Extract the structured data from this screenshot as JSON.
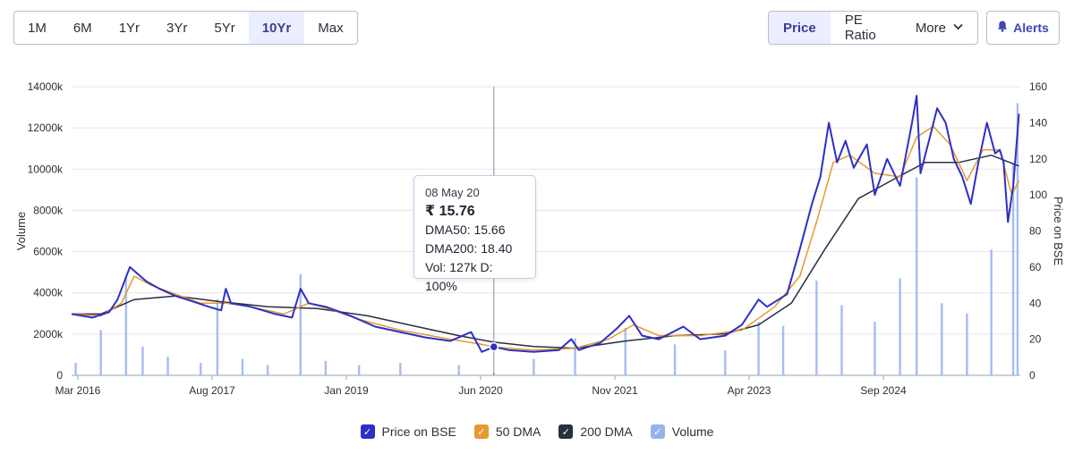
{
  "toolbar": {
    "ranges": [
      {
        "label": "1M",
        "active": false
      },
      {
        "label": "6M",
        "active": false
      },
      {
        "label": "1Yr",
        "active": false
      },
      {
        "label": "3Yr",
        "active": false
      },
      {
        "label": "5Yr",
        "active": false
      },
      {
        "label": "10Yr",
        "active": true
      },
      {
        "label": "Max",
        "active": false
      }
    ],
    "metrics": {
      "price": "Price",
      "pe_ratio": "PE Ratio",
      "more": "More"
    },
    "alerts": "Alerts"
  },
  "tooltip": {
    "date": "08 May 20",
    "price": "₹ 15.76",
    "dma50": "DMA50: 15.66",
    "dma200": "DMA200: 18.40",
    "vol": "Vol: 127k",
    "delivery": "D: 100%"
  },
  "legend": [
    {
      "label": "Price on BSE",
      "color": "#2e2fc4"
    },
    {
      "label": "50 DMA",
      "color": "#e69a2e"
    },
    {
      "label": "200 DMA",
      "color": "#253041"
    },
    {
      "label": "Volume",
      "color": "#93b3ee"
    }
  ],
  "chart_data": {
    "type": "line",
    "x_ticks": [
      "Mar 2016",
      "Aug 2017",
      "Jan 2019",
      "Jun 2020",
      "Nov 2021",
      "Apr 2023",
      "Sep 2024"
    ],
    "y_left": {
      "label": "Volume",
      "range": [
        0,
        14000000
      ],
      "ticks": [
        "0",
        "2000k",
        "4000k",
        "6000k",
        "8000k",
        "10000k",
        "12000k",
        "14000k"
      ]
    },
    "y_right": {
      "label": "Price on BSE",
      "range": [
        0,
        160
      ],
      "ticks": [
        "0",
        "20",
        "40",
        "60",
        "80",
        "100",
        "120",
        "140",
        "160"
      ]
    },
    "date_range": [
      "2016-02-15",
      "2025-08-15"
    ],
    "series": [
      {
        "name": "Price on BSE",
        "color": "#2e2fc4",
        "axis": "right",
        "points": [
          [
            "2016-02-15",
            34
          ],
          [
            "2016-05-01",
            32
          ],
          [
            "2016-07-01",
            35
          ],
          [
            "2016-08-01",
            42
          ],
          [
            "2016-09-15",
            60
          ],
          [
            "2016-10-15",
            56
          ],
          [
            "2016-11-15",
            52
          ],
          [
            "2017-01-01",
            48
          ],
          [
            "2017-03-01",
            44
          ],
          [
            "2017-05-01",
            41
          ],
          [
            "2017-07-01",
            38
          ],
          [
            "2017-08-15",
            36
          ],
          [
            "2017-09-01",
            48
          ],
          [
            "2017-09-20",
            40
          ],
          [
            "2017-12-01",
            38
          ],
          [
            "2018-03-01",
            34
          ],
          [
            "2018-05-01",
            32
          ],
          [
            "2018-06-01",
            48
          ],
          [
            "2018-07-01",
            40
          ],
          [
            "2018-09-01",
            38
          ],
          [
            "2018-12-01",
            33
          ],
          [
            "2019-03-01",
            27
          ],
          [
            "2019-06-01",
            24
          ],
          [
            "2019-09-01",
            21
          ],
          [
            "2019-12-01",
            19
          ],
          [
            "2020-02-15",
            24
          ],
          [
            "2020-03-25",
            13
          ],
          [
            "2020-05-08",
            15.76
          ],
          [
            "2020-07-01",
            14
          ],
          [
            "2020-10-01",
            13
          ],
          [
            "2021-01-01",
            14
          ],
          [
            "2021-02-15",
            20
          ],
          [
            "2021-03-15",
            14
          ],
          [
            "2021-06-01",
            18
          ],
          [
            "2021-08-01",
            26
          ],
          [
            "2021-09-15",
            33
          ],
          [
            "2021-11-01",
            22
          ],
          [
            "2022-01-01",
            20
          ],
          [
            "2022-04-01",
            27
          ],
          [
            "2022-06-01",
            20
          ],
          [
            "2022-09-01",
            22
          ],
          [
            "2022-11-01",
            28
          ],
          [
            "2023-01-01",
            42
          ],
          [
            "2023-02-01",
            38
          ],
          [
            "2023-04-15",
            45
          ],
          [
            "2023-06-01",
            70
          ],
          [
            "2023-07-15",
            95
          ],
          [
            "2023-08-15",
            110
          ],
          [
            "2023-09-15",
            140
          ],
          [
            "2023-10-15",
            118
          ],
          [
            "2023-11-15",
            130
          ],
          [
            "2023-12-15",
            115
          ],
          [
            "2024-02-01",
            128
          ],
          [
            "2024-03-01",
            100
          ],
          [
            "2024-04-15",
            120
          ],
          [
            "2024-06-01",
            105
          ],
          [
            "2024-07-15",
            140
          ],
          [
            "2024-08-01",
            155
          ],
          [
            "2024-08-15",
            112
          ],
          [
            "2024-09-15",
            130
          ],
          [
            "2024-10-15",
            148
          ],
          [
            "2024-11-15",
            140
          ],
          [
            "2024-12-15",
            120
          ],
          [
            "2025-01-15",
            110
          ],
          [
            "2025-02-15",
            95
          ],
          [
            "2025-03-15",
            118
          ],
          [
            "2025-04-15",
            140
          ],
          [
            "2025-05-15",
            123
          ],
          [
            "2025-06-01",
            125
          ],
          [
            "2025-06-15",
            118
          ],
          [
            "2025-07-01",
            85
          ],
          [
            "2025-07-20",
            105
          ],
          [
            "2025-08-10",
            145
          ]
        ]
      },
      {
        "name": "50 DMA",
        "color": "#e69a2e",
        "axis": "right",
        "points": [
          [
            "2016-02-15",
            34
          ],
          [
            "2016-06-01",
            33
          ],
          [
            "2016-08-15",
            40
          ],
          [
            "2016-10-01",
            55
          ],
          [
            "2016-12-01",
            50
          ],
          [
            "2017-03-01",
            45
          ],
          [
            "2017-06-01",
            40
          ],
          [
            "2017-09-01",
            40
          ],
          [
            "2017-12-01",
            38
          ],
          [
            "2018-04-01",
            34
          ],
          [
            "2018-07-01",
            40
          ],
          [
            "2018-10-01",
            36
          ],
          [
            "2019-01-01",
            31
          ],
          [
            "2019-06-01",
            25
          ],
          [
            "2019-12-01",
            20
          ],
          [
            "2020-04-01",
            17
          ],
          [
            "2020-05-08",
            15.66
          ],
          [
            "2020-10-01",
            14
          ],
          [
            "2021-03-01",
            15
          ],
          [
            "2021-07-01",
            20
          ],
          [
            "2021-10-01",
            28
          ],
          [
            "2022-01-01",
            22
          ],
          [
            "2022-06-01",
            22
          ],
          [
            "2022-11-01",
            25
          ],
          [
            "2023-03-01",
            38
          ],
          [
            "2023-06-01",
            55
          ],
          [
            "2023-08-01",
            85
          ],
          [
            "2023-10-01",
            118
          ],
          [
            "2023-12-01",
            122
          ],
          [
            "2024-03-01",
            112
          ],
          [
            "2024-06-01",
            110
          ],
          [
            "2024-08-01",
            132
          ],
          [
            "2024-10-01",
            138
          ],
          [
            "2024-12-01",
            128
          ],
          [
            "2025-02-01",
            108
          ],
          [
            "2025-04-01",
            125
          ],
          [
            "2025-06-01",
            125
          ],
          [
            "2025-07-15",
            100
          ],
          [
            "2025-08-10",
            108
          ]
        ]
      },
      {
        "name": "200 DMA",
        "color": "#253041",
        "axis": "right",
        "points": [
          [
            "2016-02-15",
            34
          ],
          [
            "2016-06-01",
            34
          ],
          [
            "2016-10-01",
            42
          ],
          [
            "2017-03-01",
            44
          ],
          [
            "2017-08-01",
            41
          ],
          [
            "2018-02-01",
            38
          ],
          [
            "2018-08-01",
            37
          ],
          [
            "2019-02-01",
            33
          ],
          [
            "2019-08-01",
            27
          ],
          [
            "2020-01-01",
            22
          ],
          [
            "2020-05-08",
            18.4
          ],
          [
            "2020-10-01",
            16
          ],
          [
            "2021-03-01",
            15
          ],
          [
            "2021-09-01",
            19
          ],
          [
            "2022-03-01",
            22
          ],
          [
            "2022-09-01",
            23
          ],
          [
            "2023-01-01",
            28
          ],
          [
            "2023-05-01",
            40
          ],
          [
            "2023-09-01",
            70
          ],
          [
            "2024-01-01",
            98
          ],
          [
            "2024-05-01",
            108
          ],
          [
            "2024-09-01",
            118
          ],
          [
            "2025-01-01",
            118
          ],
          [
            "2025-05-01",
            122
          ],
          [
            "2025-08-10",
            116
          ]
        ]
      },
      {
        "name": "Volume",
        "color": "#93b3ee",
        "axis": "left",
        "kind": "bar",
        "points": [
          [
            "2016-03-01",
            600000
          ],
          [
            "2016-06-01",
            2200000
          ],
          [
            "2016-09-01",
            4800000
          ],
          [
            "2016-11-01",
            1400000
          ],
          [
            "2017-02-01",
            900000
          ],
          [
            "2017-06-01",
            600000
          ],
          [
            "2017-08-01",
            3700000
          ],
          [
            "2017-11-01",
            800000
          ],
          [
            "2018-02-01",
            500000
          ],
          [
            "2018-06-01",
            4900000
          ],
          [
            "2018-09-01",
            700000
          ],
          [
            "2019-01-01",
            500000
          ],
          [
            "2019-06-01",
            600000
          ],
          [
            "2020-01-01",
            500000
          ],
          [
            "2020-05-08",
            127000
          ],
          [
            "2020-10-01",
            800000
          ],
          [
            "2021-03-01",
            1800000
          ],
          [
            "2021-09-01",
            2300000
          ],
          [
            "2022-03-01",
            1500000
          ],
          [
            "2022-09-01",
            1200000
          ],
          [
            "2023-01-01",
            2600000
          ],
          [
            "2023-04-01",
            2400000
          ],
          [
            "2023-08-01",
            4600000
          ],
          [
            "2023-11-01",
            3400000
          ],
          [
            "2024-03-01",
            2600000
          ],
          [
            "2024-06-01",
            4700000
          ],
          [
            "2024-08-01",
            9600000
          ],
          [
            "2024-11-01",
            3500000
          ],
          [
            "2025-02-01",
            3000000
          ],
          [
            "2025-05-01",
            6100000
          ],
          [
            "2025-07-20",
            10300000
          ],
          [
            "2025-08-05",
            13200000
          ]
        ]
      }
    ],
    "hover_date": "2020-05-08",
    "grid": true,
    "legend_position": "bottom"
  }
}
